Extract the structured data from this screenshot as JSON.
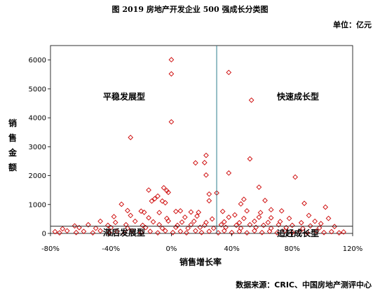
{
  "header": {
    "title": "图  2019 房地产开发企业 500 强成长分类图",
    "unit": "单位：亿元"
  },
  "footer": {
    "source": "数据来源：CRIC、中国房地产测评中心"
  },
  "colors": {
    "marker": "#cc0000",
    "divider_vertical": "#2e7d8c",
    "divider_horizontal": "#222222"
  },
  "chart_data": {
    "type": "scatter",
    "title": "2019 房地产开发企业 500 强成长分类图",
    "xlabel": "销售增长率",
    "ylabel": "销售金额",
    "xlim": [
      -80,
      120
    ],
    "ylim": [
      0,
      6500
    ],
    "xticks": [
      "-80%",
      "-40%",
      "0%",
      "40%",
      "80%",
      "120%"
    ],
    "yticks": [
      "0",
      "1000",
      "2000",
      "3000",
      "4000",
      "5000",
      "6000"
    ],
    "grid": false,
    "dividers": {
      "x": 30,
      "y": 250
    },
    "quadrant_labels": [
      "平稳发展型",
      "快速成长型",
      "滞后发展型",
      "追赶成长型"
    ],
    "series": [
      {
        "marker": "diamond",
        "points": [
          [
            0,
            6010
          ],
          [
            0,
            5520
          ],
          [
            38,
            5570
          ],
          [
            53,
            4610
          ],
          [
            0,
            3860
          ],
          [
            -27,
            3320
          ],
          [
            23,
            2700
          ],
          [
            22,
            2450
          ],
          [
            16,
            2440
          ],
          [
            23,
            2020
          ],
          [
            38,
            2090
          ],
          [
            52,
            2580
          ],
          [
            82,
            1950
          ],
          [
            -5,
            1580
          ],
          [
            -3,
            1480
          ],
          [
            -2,
            1420
          ],
          [
            25,
            1360
          ],
          [
            30,
            1400
          ],
          [
            58,
            1600
          ],
          [
            -15,
            1500
          ],
          [
            -9,
            1290
          ],
          [
            -13,
            1120
          ],
          [
            -6,
            1120
          ],
          [
            -11,
            1200
          ],
          [
            -4,
            1060
          ],
          [
            25,
            1130
          ],
          [
            46,
            1020
          ],
          [
            48,
            1180
          ],
          [
            62,
            1140
          ],
          [
            88,
            1040
          ],
          [
            102,
            910
          ],
          [
            -33,
            1010
          ],
          [
            -29,
            790
          ],
          [
            -20,
            770
          ],
          [
            -18,
            730
          ],
          [
            -8,
            720
          ],
          [
            3,
            760
          ],
          [
            6,
            780
          ],
          [
            13,
            740
          ],
          [
            18,
            730
          ],
          [
            34,
            760
          ],
          [
            42,
            640
          ],
          [
            50,
            780
          ],
          [
            59,
            720
          ],
          [
            66,
            820
          ],
          [
            73,
            780
          ],
          [
            91,
            620
          ],
          [
            104,
            520
          ],
          [
            -38,
            580
          ],
          [
            -27,
            620
          ],
          [
            -15,
            540
          ],
          [
            -3,
            520
          ],
          [
            9,
            560
          ],
          [
            17,
            600
          ],
          [
            27,
            500
          ],
          [
            38,
            560
          ],
          [
            48,
            520
          ],
          [
            58,
            560
          ],
          [
            66,
            540
          ],
          [
            78,
            520
          ],
          [
            95,
            420
          ],
          [
            -47,
            420
          ],
          [
            -37,
            380
          ],
          [
            -24,
            420
          ],
          [
            -12,
            400
          ],
          [
            -2,
            430
          ],
          [
            7,
            390
          ],
          [
            15,
            420
          ],
          [
            23,
            380
          ],
          [
            35,
            400
          ],
          [
            45,
            370
          ],
          [
            55,
            420
          ],
          [
            64,
            380
          ],
          [
            72,
            410
          ],
          [
            86,
            370
          ],
          [
            99,
            340
          ],
          [
            -64,
            260
          ],
          [
            -55,
            300
          ],
          [
            -42,
            280
          ],
          [
            -30,
            300
          ],
          [
            -19,
            280
          ],
          [
            -8,
            300
          ],
          [
            4,
            280
          ],
          [
            13,
            300
          ],
          [
            22,
            280
          ],
          [
            33,
            300
          ],
          [
            43,
            280
          ],
          [
            52,
            300
          ],
          [
            61,
            280
          ],
          [
            71,
            300
          ],
          [
            80,
            280
          ],
          [
            92,
            260
          ],
          [
            108,
            240
          ],
          [
            -72,
            160
          ],
          [
            -61,
            200
          ],
          [
            -50,
            180
          ],
          [
            -40,
            200
          ],
          [
            -29,
            180
          ],
          [
            -17,
            200
          ],
          [
            -6,
            180
          ],
          [
            3,
            210
          ],
          [
            11,
            180
          ],
          [
            19,
            210
          ],
          [
            28,
            180
          ],
          [
            36,
            210
          ],
          [
            46,
            180
          ],
          [
            56,
            210
          ],
          [
            66,
            180
          ],
          [
            76,
            200
          ],
          [
            87,
            170
          ],
          [
            98,
            190
          ],
          [
            -77,
            60
          ],
          [
            -69,
            90
          ],
          [
            -58,
            70
          ],
          [
            -47,
            90
          ],
          [
            -36,
            70
          ],
          [
            -26,
            90
          ],
          [
            -14,
            70
          ],
          [
            -4,
            90
          ],
          [
            6,
            70
          ],
          [
            16,
            90
          ],
          [
            25,
            70
          ],
          [
            35,
            90
          ],
          [
            45,
            70
          ],
          [
            55,
            90
          ],
          [
            65,
            70
          ],
          [
            75,
            90
          ],
          [
            85,
            70
          ],
          [
            96,
            80
          ],
          [
            106,
            60
          ],
          [
            114,
            50
          ],
          [
            -74,
            20
          ],
          [
            -63,
            30
          ],
          [
            -52,
            20
          ],
          [
            -41,
            30
          ],
          [
            -31,
            20
          ],
          [
            -20,
            30
          ],
          [
            -9,
            20
          ],
          [
            1,
            30
          ],
          [
            10,
            20
          ],
          [
            20,
            30
          ],
          [
            31,
            20
          ],
          [
            40,
            30
          ],
          [
            50,
            20
          ],
          [
            60,
            30
          ],
          [
            70,
            20
          ],
          [
            80,
            30
          ],
          [
            90,
            20
          ],
          [
            101,
            30
          ],
          [
            111,
            20
          ]
        ]
      }
    ]
  }
}
